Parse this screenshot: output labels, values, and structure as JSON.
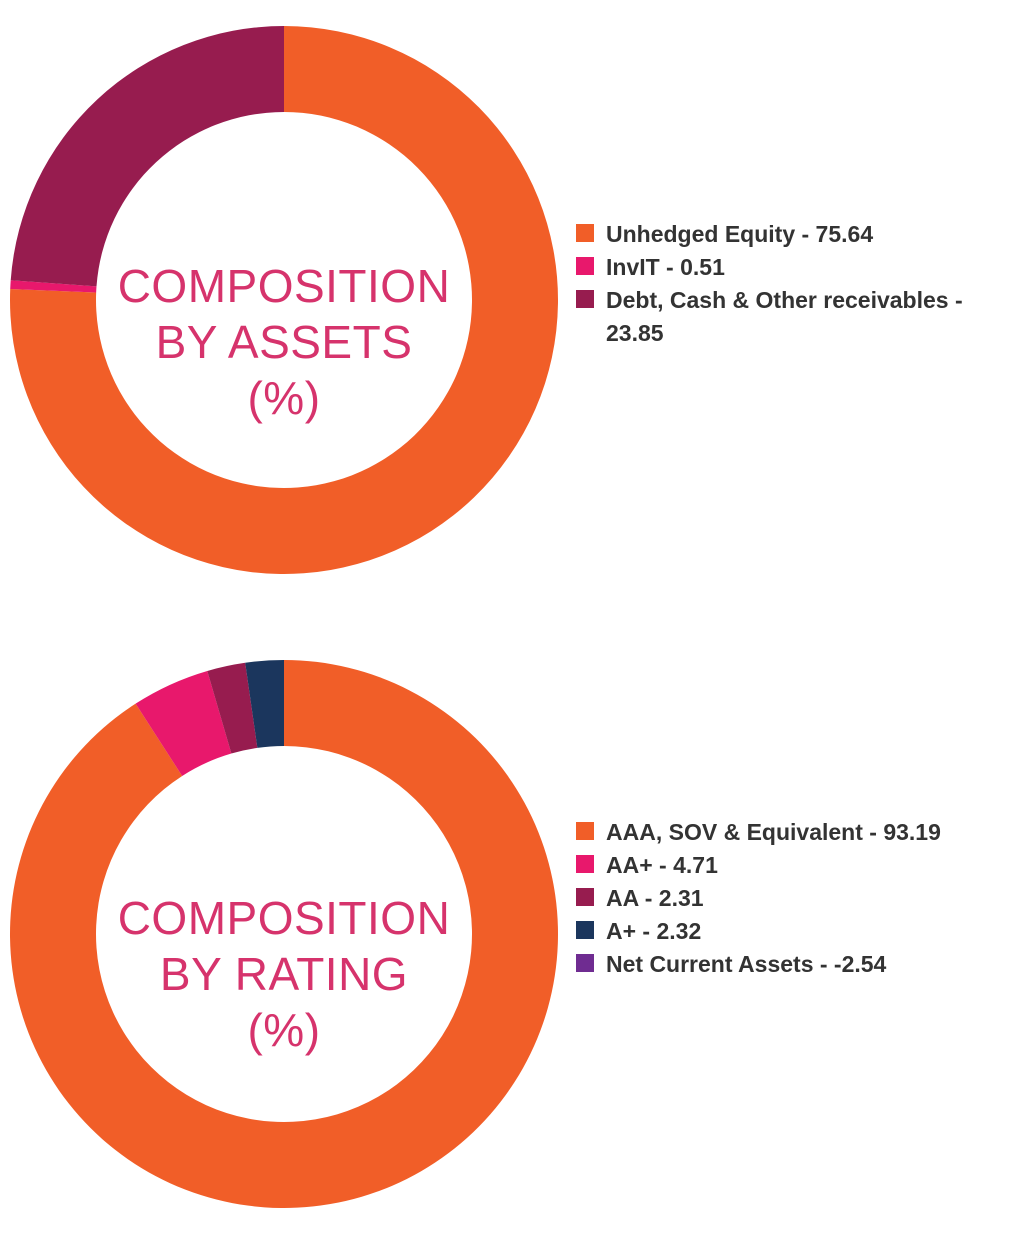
{
  "chart_data": [
    {
      "type": "pie",
      "title": [
        "COMPOSITION",
        "BY ASSETS",
        "(%)"
      ],
      "categories": [
        "Unhedged Equity",
        "InvIT",
        "Debt, Cash & Other receivables"
      ],
      "values": [
        75.64,
        0.51,
        23.85
      ],
      "colors": [
        "#f15e28",
        "#e8186c",
        "#971c4f"
      ],
      "legend_labels": [
        "Unhedged Equity - 75.64",
        "InvIT - 0.51",
        "Debt, Cash & Other receivables - 23.85"
      ],
      "legend_position": "right"
    },
    {
      "type": "pie",
      "title": [
        "COMPOSITION",
        "BY RATING",
        "(%)"
      ],
      "categories": [
        "AAA, SOV & Equivalent",
        "AA+",
        "AA",
        "A+",
        "Net Current Assets"
      ],
      "values": [
        93.19,
        4.71,
        2.31,
        2.32,
        -2.54
      ],
      "colors": [
        "#f15e28",
        "#e8186c",
        "#971c4f",
        "#1b365d",
        "#6f2c91"
      ],
      "legend_labels": [
        "AAA, SOV & Equivalent - 93.19",
        "AA+ - 4.71",
        "AA - 2.31",
        "A+ - 2.32",
        "Net Current Assets - -2.54"
      ],
      "legend_position": "right"
    }
  ]
}
